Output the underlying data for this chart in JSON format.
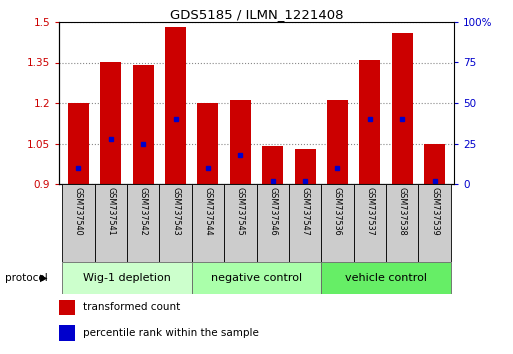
{
  "title": "GDS5185 / ILMN_1221408",
  "samples": [
    "GSM737540",
    "GSM737541",
    "GSM737542",
    "GSM737543",
    "GSM737544",
    "GSM737545",
    "GSM737546",
    "GSM737547",
    "GSM737536",
    "GSM737537",
    "GSM737538",
    "GSM737539"
  ],
  "transformed_count": [
    1.2,
    1.35,
    1.34,
    1.48,
    1.2,
    1.21,
    1.04,
    1.03,
    1.21,
    1.36,
    1.46,
    1.05
  ],
  "percentile_rank_pct": [
    10,
    28,
    25,
    40,
    10,
    18,
    2,
    2,
    10,
    40,
    40,
    2
  ],
  "ylim_left": [
    0.9,
    1.5
  ],
  "ylim_right": [
    0,
    100
  ],
  "yticks_left": [
    0.9,
    1.05,
    1.2,
    1.35,
    1.5
  ],
  "yticks_right": [
    0,
    25,
    50,
    75,
    100
  ],
  "bar_color": "#cc0000",
  "dot_color": "#0000cc",
  "groups": [
    {
      "label": "Wig-1 depletion",
      "start": 0,
      "end": 4,
      "color": "#ccffcc"
    },
    {
      "label": "negative control",
      "start": 4,
      "end": 8,
      "color": "#aaffaa"
    },
    {
      "label": "vehicle control",
      "start": 8,
      "end": 12,
      "color": "#66ee66"
    }
  ],
  "sample_box_color": "#cccccc",
  "grid_color": "#888888",
  "left_tick_color": "#cc0000",
  "right_tick_color": "#0000cc",
  "protocol_label": "protocol",
  "legend_labels": [
    "transformed count",
    "percentile rank within the sample"
  ]
}
